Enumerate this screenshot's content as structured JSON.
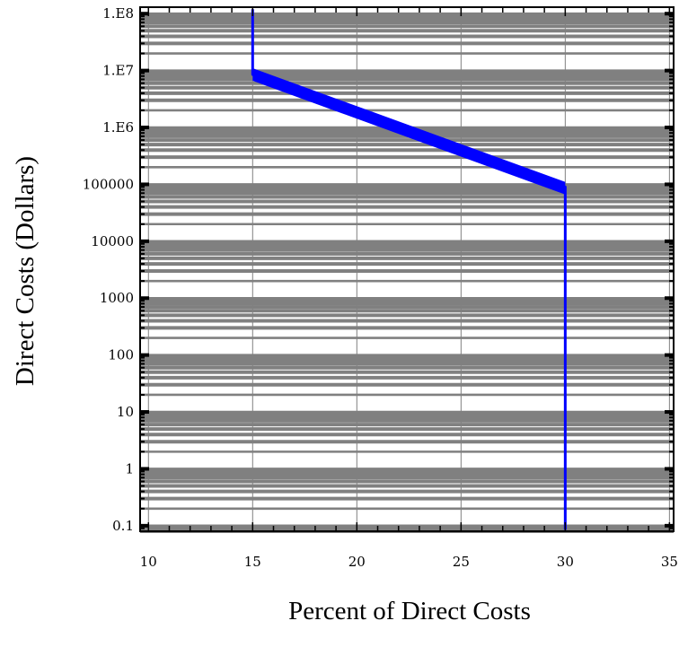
{
  "chart_data": {
    "type": "line",
    "title": "",
    "xlabel": "Percent of Direct Costs",
    "ylabel": "Direct Costs (Dollars)",
    "xlim": [
      9.6,
      35.2
    ],
    "ylim": [
      0.08,
      130000000
    ],
    "y_scale": "log",
    "x_ticks": [
      10,
      15,
      20,
      25,
      30,
      35
    ],
    "x_tick_labels": [
      "10",
      "15",
      "20",
      "25",
      "30",
      "35"
    ],
    "y_ticks": [
      0.1,
      1,
      10,
      100,
      1000,
      10000,
      100000,
      1000000,
      10000000,
      100000000
    ],
    "y_tick_labels": [
      "0.1",
      "1",
      "10",
      "100",
      "1000",
      "10000",
      "100000",
      "1.E6",
      "1.E7",
      "1.E8"
    ],
    "grid": true,
    "colors": {
      "grid_band": "#808080",
      "series": "#0000ff"
    },
    "series": [
      {
        "x": [
          15,
          15,
          30,
          30
        ],
        "y": [
          120000000,
          8500000,
          90000,
          0.085
        ]
      }
    ],
    "band_edge": {
      "x": [
        15,
        30
      ],
      "y": [
        11000000,
        110000
      ]
    }
  }
}
